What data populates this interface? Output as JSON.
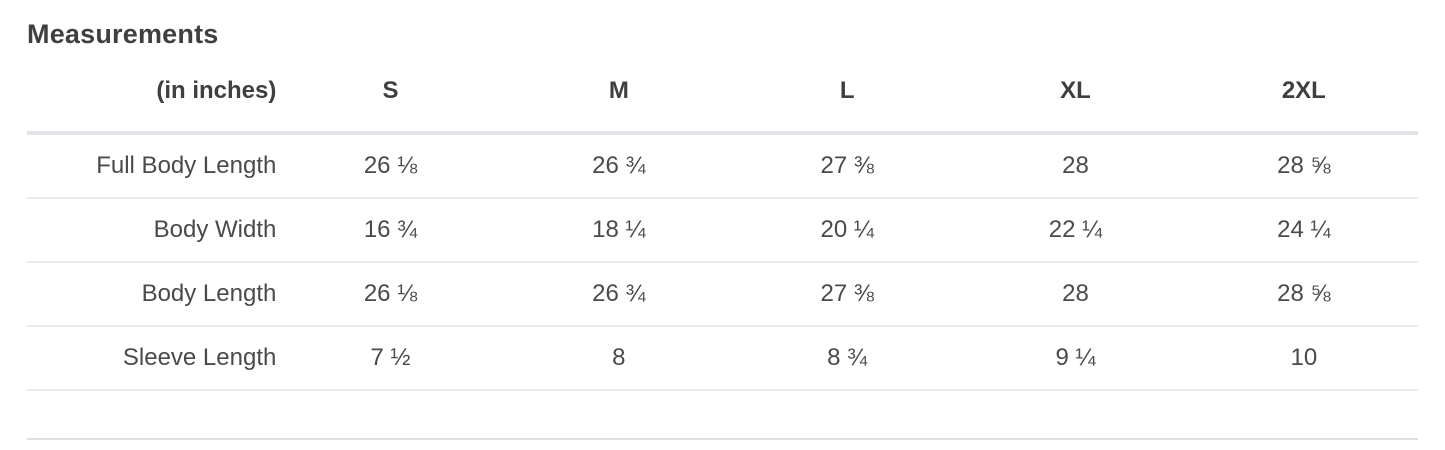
{
  "page": {
    "title": "Measurements"
  },
  "table": {
    "unit_label": "(in inches)",
    "size_headers": [
      "S",
      "M",
      "L",
      "XL",
      "2XL"
    ],
    "rows": [
      {
        "label": "Full Body Length",
        "values": [
          "26 ⅛",
          "26 ¾",
          "27 ⅜",
          "28",
          "28 ⅝"
        ]
      },
      {
        "label": "Body Width",
        "values": [
          "16 ¾",
          "18 ¼",
          "20 ¼",
          "22 ¼",
          "24 ¼"
        ]
      },
      {
        "label": "Body Length",
        "values": [
          "26 ⅛",
          "26 ¾",
          "27 ⅜",
          "28",
          "28 ⅝"
        ]
      },
      {
        "label": "Sleeve Length",
        "values": [
          "7 ½",
          "8",
          "8 ¾",
          "9 ¼",
          "10"
        ]
      }
    ]
  },
  "colors": {
    "text": "#454545",
    "heading_text": "#3f3f41",
    "header_divider": "#e2e2e7",
    "row_divider": "#ebebee",
    "bottom_divider": "#dfdfe4",
    "background": "#ffffff"
  }
}
